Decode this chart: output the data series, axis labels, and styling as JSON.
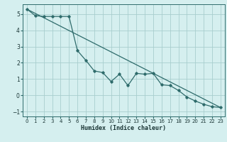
{
  "xlabel": "Humidex (Indice chaleur)",
  "line_color": "#2e6b6b",
  "background_color": "#d5efef",
  "grid_color": "#a8cece",
  "xlim": [
    -0.5,
    23.5
  ],
  "ylim": [
    -1.3,
    5.6
  ],
  "yticks": [
    -1,
    0,
    1,
    2,
    3,
    4,
    5
  ],
  "xticks": [
    0,
    1,
    2,
    3,
    4,
    5,
    6,
    7,
    8,
    9,
    10,
    11,
    12,
    13,
    14,
    15,
    16,
    17,
    18,
    19,
    20,
    21,
    22,
    23
  ],
  "line1_x": [
    0,
    1,
    2,
    3,
    4,
    5,
    6,
    7,
    8,
    9,
    10,
    11,
    12,
    13,
    14,
    15,
    16,
    17,
    18,
    19,
    20,
    21,
    22,
    23
  ],
  "line1_y": [
    5.3,
    4.9,
    4.85,
    4.85,
    4.85,
    4.85,
    2.75,
    2.15,
    1.5,
    1.4,
    0.85,
    1.3,
    0.6,
    1.35,
    1.3,
    1.35,
    0.65,
    0.6,
    0.3,
    -0.1,
    -0.35,
    -0.55,
    -0.7,
    -0.75
  ],
  "line2_x": [
    0,
    23
  ],
  "line2_y": [
    5.3,
    -0.75
  ]
}
